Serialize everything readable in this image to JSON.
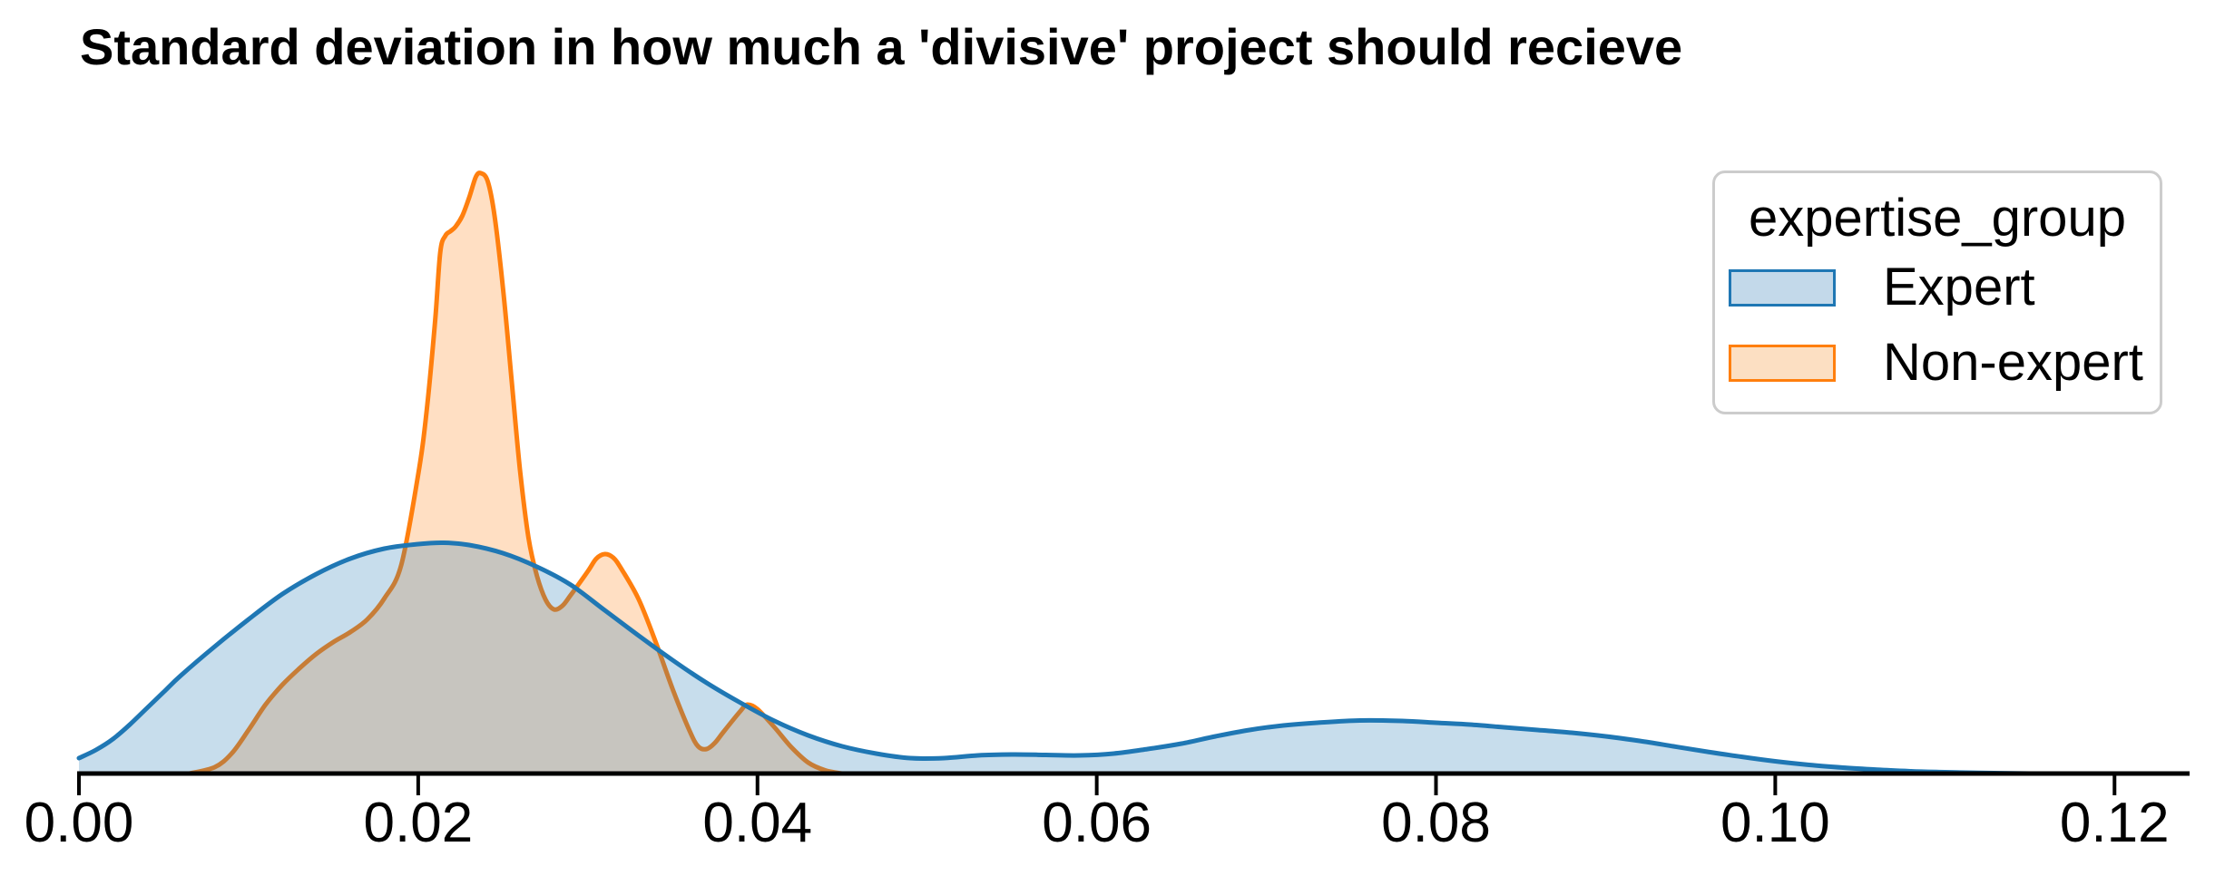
{
  "title": "Standard deviation in how much a 'divisive' project should recieve",
  "legend": {
    "title": "expertise_group",
    "items": [
      {
        "label": "Expert",
        "line_color": "#1f77b4",
        "patch_fill": "#c3d9ea"
      },
      {
        "label": "Non-expert",
        "line_color": "#ff7f0e",
        "patch_fill": "#fcdfc2"
      }
    ]
  },
  "axis": {
    "line_color": "#000000",
    "tick_color": "#000000"
  },
  "chart_data": {
    "type": "area",
    "subtype": "kde-density",
    "title": "Standard deviation in how much a 'divisive' project should recieve",
    "xlabel": "",
    "ylabel": "",
    "xlim": [
      0,
      0.1248
    ],
    "ylim": [
      0,
      75
    ],
    "grid": false,
    "y_axis_visible": false,
    "legend_position": "upper right",
    "x_ticks": {
      "values": [
        0.0,
        0.02,
        0.04,
        0.06,
        0.08,
        0.1,
        0.12
      ],
      "labels": [
        "0.00",
        "0.02",
        "0.04",
        "0.06",
        "0.08",
        "0.10",
        "0.12"
      ]
    },
    "series": [
      {
        "name": "Expert",
        "color": "#1f77b4",
        "fill": "rgba(31,119,180,0.25)",
        "points": [
          [
            0.0,
            1.7
          ],
          [
            0.001,
            2.6
          ],
          [
            0.002,
            3.8
          ],
          [
            0.003,
            5.4
          ],
          [
            0.004,
            7.2
          ],
          [
            0.005,
            9.0
          ],
          [
            0.006,
            10.8
          ],
          [
            0.008,
            14.0
          ],
          [
            0.01,
            17.0
          ],
          [
            0.012,
            19.8
          ],
          [
            0.014,
            22.0
          ],
          [
            0.016,
            23.7
          ],
          [
            0.018,
            24.8
          ],
          [
            0.02,
            25.3
          ],
          [
            0.0215,
            25.45
          ],
          [
            0.023,
            25.2
          ],
          [
            0.025,
            24.3
          ],
          [
            0.027,
            22.8
          ],
          [
            0.029,
            20.8
          ],
          [
            0.031,
            18.0
          ],
          [
            0.033,
            15.2
          ],
          [
            0.035,
            12.5
          ],
          [
            0.037,
            10.0
          ],
          [
            0.039,
            7.8
          ],
          [
            0.041,
            5.8
          ],
          [
            0.043,
            4.2
          ],
          [
            0.045,
            3.0
          ],
          [
            0.047,
            2.2
          ],
          [
            0.049,
            1.7
          ],
          [
            0.051,
            1.7
          ],
          [
            0.053,
            2.0
          ],
          [
            0.055,
            2.1
          ],
          [
            0.057,
            2.05
          ],
          [
            0.059,
            2.0
          ],
          [
            0.061,
            2.2
          ],
          [
            0.063,
            2.7
          ],
          [
            0.065,
            3.3
          ],
          [
            0.067,
            4.1
          ],
          [
            0.069,
            4.8
          ],
          [
            0.071,
            5.3
          ],
          [
            0.073,
            5.6
          ],
          [
            0.0755,
            5.85
          ],
          [
            0.078,
            5.8
          ],
          [
            0.08,
            5.6
          ],
          [
            0.082,
            5.4
          ],
          [
            0.084,
            5.1
          ],
          [
            0.086,
            4.8
          ],
          [
            0.088,
            4.5
          ],
          [
            0.09,
            4.1
          ],
          [
            0.092,
            3.6
          ],
          [
            0.094,
            3.0
          ],
          [
            0.096,
            2.4
          ],
          [
            0.098,
            1.85
          ],
          [
            0.1,
            1.35
          ],
          [
            0.102,
            0.95
          ],
          [
            0.104,
            0.65
          ],
          [
            0.106,
            0.42
          ],
          [
            0.108,
            0.25
          ],
          [
            0.11,
            0.15
          ],
          [
            0.112,
            0.08
          ],
          [
            0.115,
            0.0
          ]
        ]
      },
      {
        "name": "Non-expert",
        "color": "#ff7f0e",
        "fill": "rgba(255,127,14,0.25)",
        "points": [
          [
            0.0065,
            0.0
          ],
          [
            0.008,
            0.7
          ],
          [
            0.009,
            2.2
          ],
          [
            0.01,
            4.8
          ],
          [
            0.011,
            7.6
          ],
          [
            0.012,
            9.8
          ],
          [
            0.013,
            11.6
          ],
          [
            0.014,
            13.2
          ],
          [
            0.015,
            14.5
          ],
          [
            0.016,
            15.6
          ],
          [
            0.017,
            17.0
          ],
          [
            0.018,
            19.3
          ],
          [
            0.019,
            23.0
          ],
          [
            0.02,
            33.0
          ],
          [
            0.0205,
            40.0
          ],
          [
            0.021,
            50.0
          ],
          [
            0.0213,
            57.5
          ],
          [
            0.0216,
            59.3
          ],
          [
            0.0219,
            59.8
          ],
          [
            0.0222,
            60.3
          ],
          [
            0.0226,
            61.5
          ],
          [
            0.023,
            63.5
          ],
          [
            0.0234,
            65.8
          ],
          [
            0.0237,
            66.2
          ],
          [
            0.0241,
            65.3
          ],
          [
            0.0245,
            61.5
          ],
          [
            0.025,
            53.5
          ],
          [
            0.0255,
            43.5
          ],
          [
            0.026,
            33.5
          ],
          [
            0.0265,
            26.0
          ],
          [
            0.027,
            21.8
          ],
          [
            0.0275,
            19.2
          ],
          [
            0.028,
            18.1
          ],
          [
            0.0285,
            18.5
          ],
          [
            0.029,
            19.7
          ],
          [
            0.03,
            22.3
          ],
          [
            0.0305,
            23.7
          ],
          [
            0.031,
            24.2
          ],
          [
            0.0315,
            23.8
          ],
          [
            0.032,
            22.5
          ],
          [
            0.033,
            19.2
          ],
          [
            0.034,
            14.5
          ],
          [
            0.035,
            9.3
          ],
          [
            0.036,
            4.7
          ],
          [
            0.0365,
            3.0
          ],
          [
            0.037,
            2.7
          ],
          [
            0.0375,
            3.4
          ],
          [
            0.038,
            4.6
          ],
          [
            0.039,
            6.9
          ],
          [
            0.0394,
            7.6
          ],
          [
            0.04,
            7.1
          ],
          [
            0.041,
            5.1
          ],
          [
            0.042,
            2.9
          ],
          [
            0.043,
            1.2
          ],
          [
            0.044,
            0.35
          ],
          [
            0.045,
            0.0
          ]
        ]
      }
    ],
    "draw_order": [
      "Non-expert",
      "Expert"
    ]
  }
}
